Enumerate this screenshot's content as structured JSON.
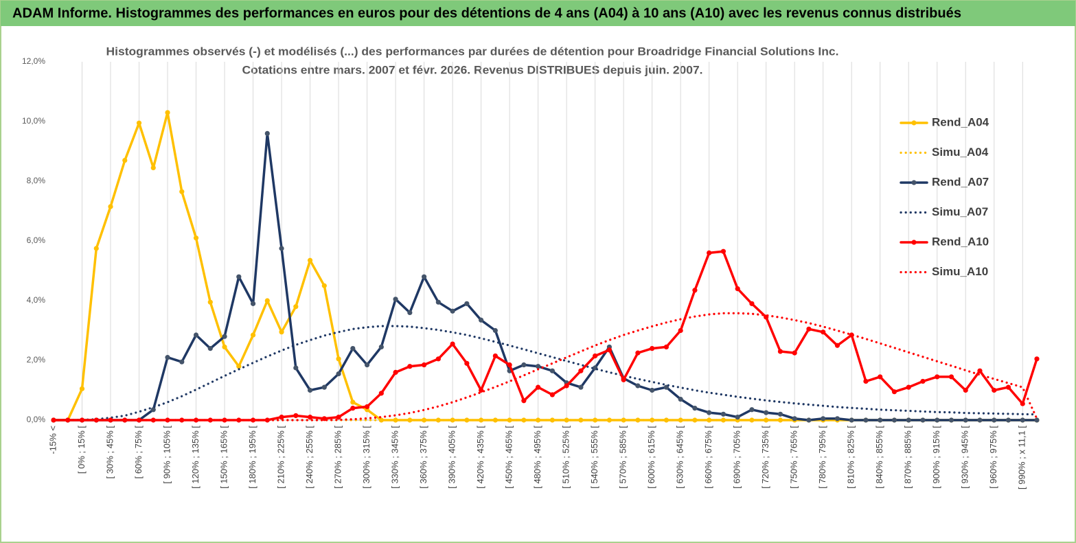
{
  "header": {
    "title": "ADAM Informe. Histogrammes des performances en euros pour des détentions de 4 ans (A04) à 10 ans (A10) avec les revenus connus distribués"
  },
  "chart_data": {
    "type": "line",
    "title": "Histogrammes observés (-) et modélisés (...) des performances par durées de détention pour Broadridge Financial Solutions Inc.",
    "subtitle": "Cotations entre mars. 2007 et févr. 2026. Revenus DISTRIBUES depuis juin. 2007.",
    "categories": [
      "-15% <",
      null,
      "[ 0% ; 15% [",
      null,
      "[ 30% ; 45% [",
      null,
      "[ 60% ; 75% [",
      null,
      "[ 90% ; 105% [",
      null,
      "[ 120% ; 135% [",
      null,
      "[ 150% ; 165% [",
      null,
      "[ 180% ; 195% [",
      null,
      "[ 210% ; 225% [",
      null,
      "[ 240% ; 255% [",
      null,
      "[ 270% ; 285% [",
      null,
      "[ 300% ; 315% [",
      null,
      "[ 330% ; 345% [",
      null,
      "[ 360% ; 375% [",
      null,
      "[ 390% ; 405% [",
      null,
      "[ 420% ; 435% [",
      null,
      "[ 450% ; 465% [",
      null,
      "[ 480% ; 495% [",
      null,
      "[ 510% ; 525% [",
      null,
      "[ 540% ; 555% [",
      null,
      "[ 570% ; 585% [",
      null,
      "[ 600% ; 615% [",
      null,
      "[ 630% ; 645% [",
      null,
      "[ 660% ; 675% [",
      null,
      "[ 690% ; 705% [",
      null,
      "[ 720% ; 735% [",
      null,
      "[ 750% ; 765% [",
      null,
      "[ 780% ; 795% [",
      null,
      "[ 810% ; 825% [",
      null,
      "[ 840% ; 855% [",
      null,
      "[ 870% ; 885% [",
      null,
      "[ 900% ; 915% [",
      null,
      "[ 930% ; 945% [",
      null,
      "[ 960% ; 975% [",
      null,
      "[ 990% ; x 11,1 [",
      null
    ],
    "ylim": [
      0,
      12
    ],
    "yticks": [
      {
        "value": 0,
        "label": "0,0%"
      },
      {
        "value": 2,
        "label": "2,0%"
      },
      {
        "value": 4,
        "label": "4,0%"
      },
      {
        "value": 6,
        "label": "6,0%"
      },
      {
        "value": 8,
        "label": "8,0%"
      },
      {
        "value": 10,
        "label": "10,0%"
      },
      {
        "value": 12,
        "label": "12,0%"
      }
    ],
    "grid": "x",
    "legend": "right",
    "series": [
      {
        "name": "Rend_A04",
        "color": "#FFC000",
        "style": "solid",
        "markers": true,
        "values": [
          0,
          0,
          1.05,
          5.75,
          7.15,
          8.7,
          9.95,
          8.45,
          10.3,
          7.65,
          6.1,
          3.95,
          2.45,
          1.8,
          2.85,
          4.0,
          2.95,
          3.8,
          5.35,
          4.5,
          2.05,
          0.6,
          0.35,
          0,
          0,
          0,
          0,
          0,
          0,
          0,
          0,
          0,
          0,
          0,
          0,
          0,
          0,
          0,
          0,
          0,
          0,
          0,
          0,
          0,
          0,
          0,
          0,
          0,
          0,
          0,
          0,
          0,
          0,
          0,
          0,
          0,
          0,
          0,
          0,
          0,
          0,
          0,
          0,
          0,
          0,
          0,
          0,
          0,
          0,
          0
        ]
      },
      {
        "name": "Simu_A04",
        "color": "#FFC000",
        "style": "dotted",
        "markers": false,
        "values": [
          0,
          0,
          0,
          0,
          0,
          0,
          0,
          0,
          0,
          0,
          0,
          0,
          0,
          0,
          0,
          0,
          0,
          0,
          0,
          0,
          0,
          0,
          0,
          0,
          0,
          0,
          0,
          0,
          0,
          0,
          0,
          0,
          0,
          0,
          0,
          0,
          0,
          0,
          0,
          0,
          0,
          0,
          0,
          0,
          0,
          0,
          0,
          0,
          0,
          0,
          0,
          0,
          0,
          0,
          0,
          0,
          0,
          0,
          0,
          0,
          0,
          0,
          0,
          0,
          0,
          0,
          0,
          0,
          0,
          0
        ]
      },
      {
        "name": "Rend_A07",
        "color": "#1F3864",
        "style": "solid",
        "markers": true,
        "marker_color": "#44546A",
        "values": [
          0,
          0,
          0,
          0,
          0,
          0,
          0,
          0.35,
          2.1,
          1.95,
          2.85,
          2.4,
          2.8,
          4.8,
          3.9,
          9.6,
          5.75,
          1.75,
          1.0,
          1.1,
          1.55,
          2.4,
          1.85,
          2.45,
          4.05,
          3.6,
          4.8,
          3.95,
          3.65,
          3.9,
          3.35,
          3.0,
          1.65,
          1.85,
          1.8,
          1.65,
          1.25,
          1.1,
          1.75,
          2.45,
          1.4,
          1.15,
          1.0,
          1.1,
          0.7,
          0.4,
          0.25,
          0.2,
          0.1,
          0.35,
          0.25,
          0.2,
          0.05,
          0,
          0.05,
          0.05,
          0,
          0,
          0,
          0,
          0,
          0,
          0,
          0,
          0,
          0,
          0,
          0,
          0,
          0
        ]
      },
      {
        "name": "Simu_A07",
        "color": "#1F3864",
        "style": "dotted",
        "markers": false,
        "values": [
          0,
          0,
          0.01,
          0.03,
          0.08,
          0.15,
          0.28,
          0.43,
          0.6,
          0.8,
          1.02,
          1.25,
          1.48,
          1.7,
          1.92,
          2.13,
          2.33,
          2.52,
          2.68,
          2.83,
          2.95,
          3.05,
          3.11,
          3.15,
          3.15,
          3.13,
          3.08,
          3.02,
          2.94,
          2.85,
          2.74,
          2.62,
          2.5,
          2.37,
          2.24,
          2.11,
          1.98,
          1.85,
          1.72,
          1.6,
          1.49,
          1.38,
          1.28,
          1.18,
          1.09,
          1.0,
          0.92,
          0.85,
          0.78,
          0.72,
          0.66,
          0.61,
          0.56,
          0.52,
          0.48,
          0.44,
          0.41,
          0.38,
          0.35,
          0.33,
          0.31,
          0.29,
          0.27,
          0.26,
          0.24,
          0.23,
          0.22,
          0.21,
          0.2,
          0.19
        ]
      },
      {
        "name": "Rend_A10",
        "color": "#FF0000",
        "style": "solid",
        "markers": true,
        "values": [
          0,
          0,
          0,
          0,
          0,
          0,
          0,
          0,
          0,
          0,
          0,
          0,
          0,
          0,
          0,
          0,
          0.1,
          0.15,
          0.1,
          0.05,
          0.1,
          0.4,
          0.45,
          0.9,
          1.6,
          1.8,
          1.85,
          2.05,
          2.55,
          1.9,
          1.0,
          2.15,
          1.85,
          0.65,
          1.1,
          0.85,
          1.15,
          1.65,
          2.15,
          2.35,
          1.35,
          2.25,
          2.4,
          2.45,
          3.0,
          4.35,
          5.6,
          5.65,
          4.4,
          3.9,
          3.45,
          2.3,
          2.25,
          3.05,
          2.95,
          2.5,
          2.85,
          1.3,
          1.45,
          0.95,
          1.1,
          1.3,
          1.45,
          1.45,
          1.0,
          1.65,
          1.0,
          1.1,
          0.55,
          2.05
        ]
      },
      {
        "name": "Simu_A10",
        "color": "#FF0000",
        "style": "dotted",
        "markers": false,
        "values": [
          0,
          0,
          0,
          0,
          0,
          0,
          0,
          0,
          0,
          0,
          0,
          0,
          0,
          0,
          0,
          0,
          0,
          0,
          0,
          0,
          0.01,
          0.03,
          0.06,
          0.1,
          0.16,
          0.24,
          0.34,
          0.46,
          0.6,
          0.76,
          0.93,
          1.11,
          1.3,
          1.5,
          1.7,
          1.9,
          2.1,
          2.3,
          2.5,
          2.68,
          2.85,
          3.0,
          3.14,
          3.27,
          3.38,
          3.47,
          3.54,
          3.58,
          3.58,
          3.56,
          3.51,
          3.44,
          3.35,
          3.25,
          3.13,
          3.0,
          2.86,
          2.72,
          2.57,
          2.42,
          2.27,
          2.12,
          1.97,
          1.82,
          1.67,
          1.52,
          1.38,
          1.24,
          1.1,
          0.05
        ]
      }
    ]
  }
}
